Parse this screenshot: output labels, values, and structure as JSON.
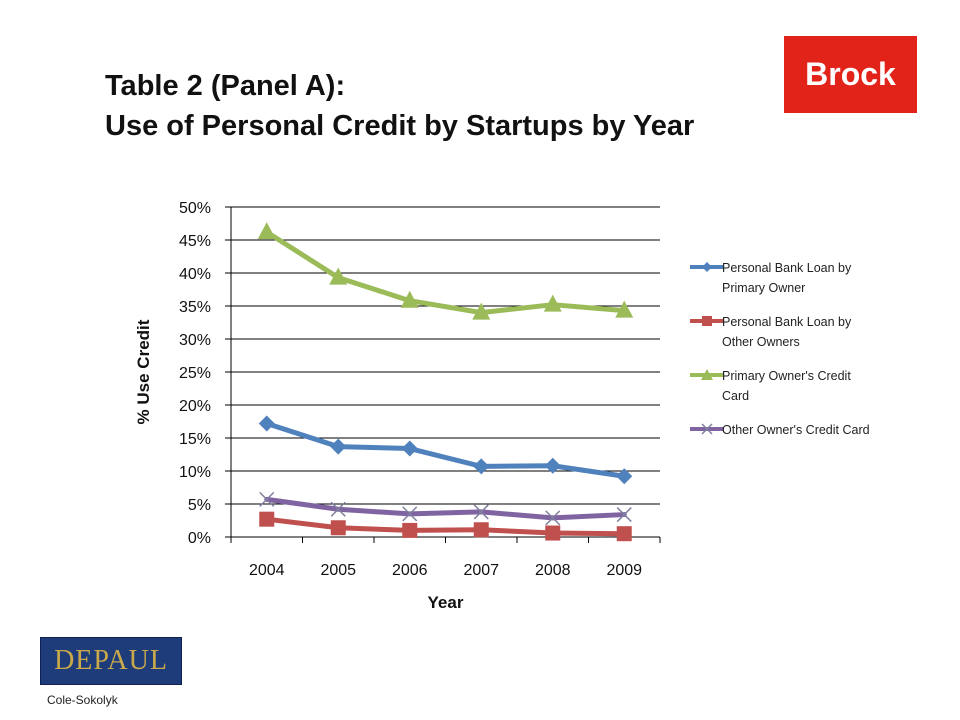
{
  "title": {
    "line1": "Table 2 (Panel A):",
    "line2": "Use of Personal Credit by Startups by Year"
  },
  "logos": {
    "top_right": "Brock",
    "bottom_left": "DEPAUL"
  },
  "footer": "Cole-Sokolyk",
  "colors": {
    "blue": "#4f81bd",
    "red": "#c0504d",
    "green": "#9bbb59",
    "purple": "#8064a2",
    "brock_red": "#e2231a",
    "depaul_blue": "#1f3c7a"
  },
  "chart_data": {
    "type": "line",
    "title": "",
    "xlabel": "Year",
    "ylabel": "% Use Credit",
    "x": [
      "2004",
      "2005",
      "2006",
      "2007",
      "2008",
      "2009"
    ],
    "ylim": [
      0,
      50
    ],
    "yticks": [
      "0%",
      "5%",
      "10%",
      "15%",
      "20%",
      "25%",
      "30%",
      "35%",
      "40%",
      "45%",
      "50%"
    ],
    "grid": true,
    "legend_position": "right",
    "series": [
      {
        "name": "Personal Bank Loan by Primary Owner",
        "marker": "diamond",
        "color": "#4f81bd",
        "values": [
          17.2,
          13.7,
          13.4,
          10.7,
          10.8,
          9.2
        ]
      },
      {
        "name": "Personal Bank Loan by Other Owners",
        "marker": "square",
        "color": "#c0504d",
        "values": [
          2.7,
          1.4,
          1.0,
          1.1,
          0.6,
          0.5
        ]
      },
      {
        "name": "Primary Owner's Credit Card",
        "marker": "triangle",
        "color": "#9bbb59",
        "values": [
          46.2,
          39.3,
          35.8,
          34.0,
          35.2,
          34.3
        ]
      },
      {
        "name": "Other Owner's Credit Card",
        "marker": "x",
        "color": "#8064a2",
        "values": [
          5.7,
          4.2,
          3.5,
          3.8,
          2.9,
          3.4
        ]
      }
    ]
  }
}
